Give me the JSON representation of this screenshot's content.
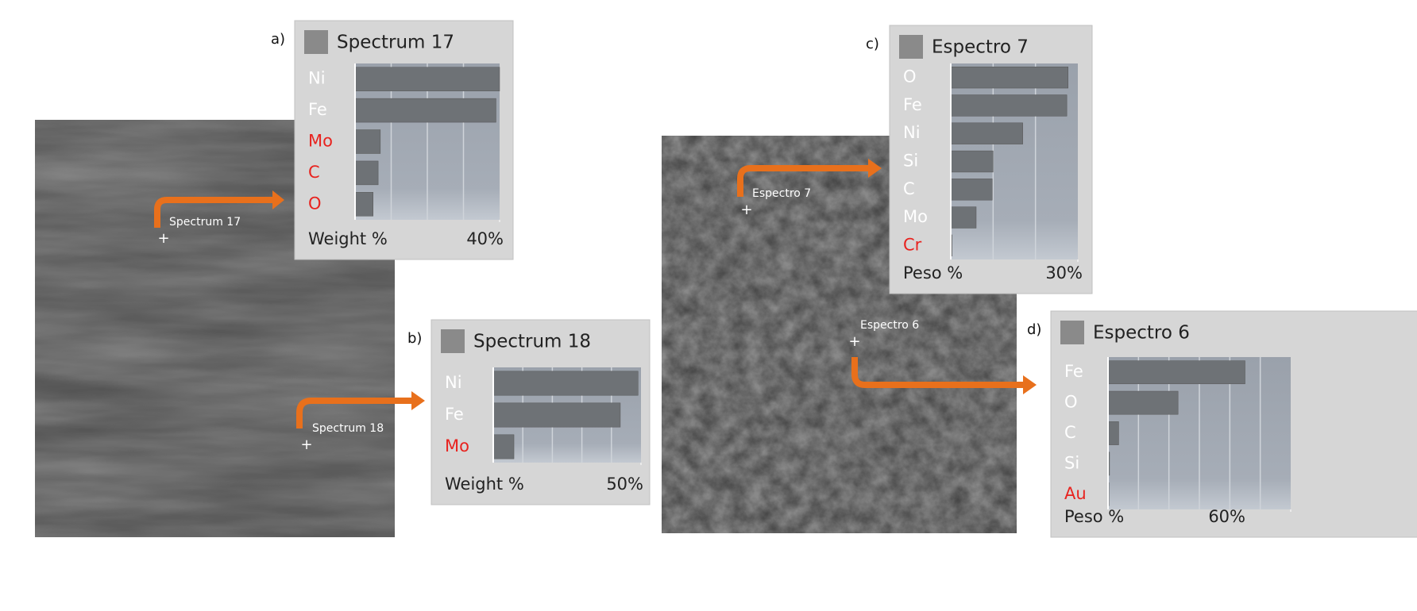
{
  "chart_data": [
    {
      "type": "bar",
      "orientation": "horizontal",
      "panel_label": "a)",
      "title": "Spectrum 17",
      "marker_label": "Spectrum 17",
      "categories": [
        "Ni",
        "Fe",
        "Mo",
        "C",
        "O"
      ],
      "category_colors": [
        "#ffffff",
        "#ffffff",
        "#e8231f",
        "#e8231f",
        "#e8231f"
      ],
      "values": [
        40,
        39,
        7,
        6.4,
        5
      ],
      "color": "#6e7276",
      "xlabel": "Weight %",
      "xlim": [
        0,
        40
      ],
      "xticks": [
        {
          "value": 40,
          "label": "40%"
        }
      ],
      "xgrid": [
        10,
        20,
        30
      ]
    },
    {
      "type": "bar",
      "orientation": "horizontal",
      "panel_label": "b)",
      "title": "Spectrum 18",
      "marker_label": "Spectrum 18",
      "categories": [
        "Ni",
        "Fe",
        "Mo"
      ],
      "category_colors": [
        "#ffffff",
        "#ffffff",
        "#e8231f"
      ],
      "values": [
        49,
        43,
        7
      ],
      "color": "#6e7276",
      "xlabel": "Weight %",
      "xlim": [
        0,
        50
      ],
      "xticks": [
        {
          "value": 50,
          "label": "50%"
        }
      ],
      "xgrid": [
        10,
        20,
        30,
        40
      ]
    },
    {
      "type": "bar",
      "orientation": "horizontal",
      "panel_label": "c)",
      "title": "Espectro 7",
      "marker_label": "Espectro 7",
      "categories": [
        "O",
        "Fe",
        "Ni",
        "Si",
        "C",
        "Mo",
        "Cr"
      ],
      "category_colors": [
        "#ffffff",
        "#ffffff",
        "#ffffff",
        "#ffffff",
        "#ffffff",
        "#ffffff",
        "#e8231f"
      ],
      "values": [
        27.7,
        27.4,
        17,
        10,
        9.8,
        6,
        0.3
      ],
      "color": "#6e7276",
      "xlabel": "Peso %",
      "xlim": [
        0,
        30
      ],
      "xticks": [
        {
          "value": 30,
          "label": "30%"
        }
      ],
      "xgrid": [
        10,
        20
      ]
    },
    {
      "type": "bar",
      "orientation": "horizontal",
      "panel_label": "d)",
      "title": "Espectro 6",
      "marker_label": "Espectro 6",
      "categories": [
        "Fe",
        "O",
        "C",
        "Si",
        "Au"
      ],
      "category_colors": [
        "#ffffff",
        "#ffffff",
        "#ffffff",
        "#ffffff",
        "#e8231f"
      ],
      "values": [
        45,
        23,
        3.5,
        0.5,
        0.3
      ],
      "color": "#6e7276",
      "xlabel": "Peso %",
      "xlim": [
        0,
        60
      ],
      "xticks": [
        {
          "value": 60,
          "label": "60%"
        }
      ],
      "xgrid": [
        10,
        20,
        30,
        40,
        50
      ]
    }
  ]
}
